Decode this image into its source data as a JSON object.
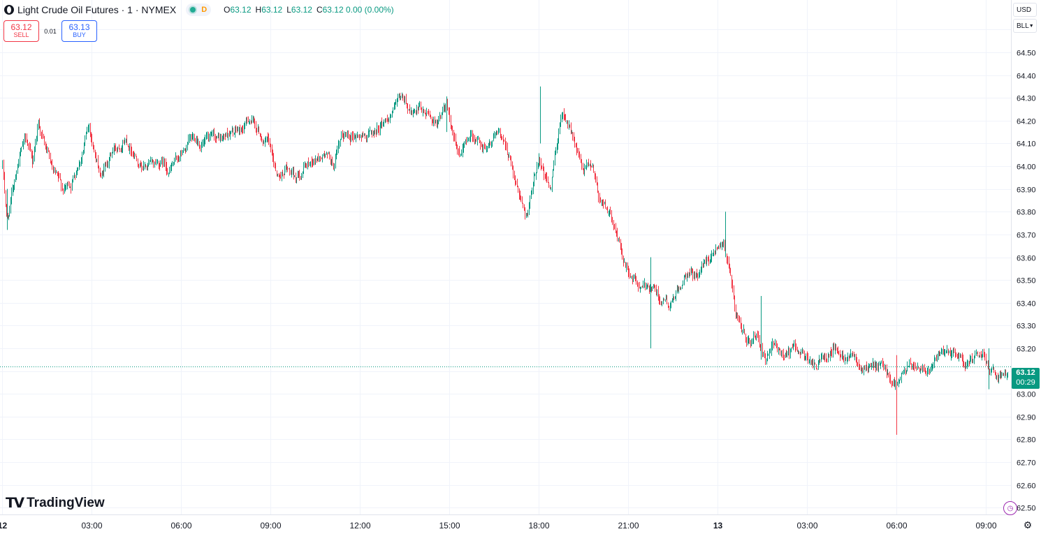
{
  "header": {
    "title": "Light Crude Oil Futures · 1 · NYMEX",
    "delay_badge": "D",
    "ohlc": [
      {
        "k": "O",
        "v": "63.12"
      },
      {
        "k": "H",
        "v": "63.12"
      },
      {
        "k": "L",
        "v": "63.12"
      },
      {
        "k": "C",
        "v": "63.12 0.00 (0.00%)"
      }
    ]
  },
  "trade": {
    "sell_price": "63.12",
    "sell_label": "SELL",
    "spread": "0.01",
    "buy_price": "63.13",
    "buy_label": "BUY"
  },
  "scale": {
    "currency": "USD",
    "unit": "BLL"
  },
  "last_price": {
    "price": "63.12",
    "countdown": "00:29"
  },
  "branding": {
    "logo_mark": "17",
    "logo_text": "TradingView"
  },
  "colors": {
    "up": "#089981",
    "down": "#f23645",
    "grid": "#f0f3fa",
    "text": "#131722",
    "last_price_line": "#089981"
  },
  "icons": {
    "market": "market-status-icon",
    "alert": "alert-icon",
    "settings": "gear-icon"
  },
  "chart_data": {
    "type": "candlestick",
    "interval": "1 minute",
    "yticks": [
      "64.60",
      "64.50",
      "64.40",
      "64.30",
      "64.20",
      "64.10",
      "64.00",
      "63.90",
      "63.80",
      "63.70",
      "63.60",
      "63.50",
      "63.40",
      "63.30",
      "63.20",
      "63.10",
      "63.00",
      "62.90",
      "62.80",
      "62.70",
      "62.60",
      "62.50"
    ],
    "ylim": [
      62.47,
      64.73
    ],
    "xticks": [
      {
        "label": "12",
        "t": 0
      },
      {
        "label": "03:00",
        "t": 3
      },
      {
        "label": "06:00",
        "t": 6
      },
      {
        "label": "09:00",
        "t": 9
      },
      {
        "label": "12:00",
        "t": 12
      },
      {
        "label": "15:00",
        "t": 15
      },
      {
        "label": "18:00",
        "t": 18
      },
      {
        "label": "21:00",
        "t": 21
      },
      {
        "label": "13",
        "t": 24
      },
      {
        "label": "03:00",
        "t": 27
      },
      {
        "label": "06:00",
        "t": 30
      },
      {
        "label": "09:00",
        "t": 33
      }
    ],
    "xlim_hours": [
      -0.08,
      33.85
    ],
    "last_price": 63.12,
    "path": [
      [
        0.0,
        64.0
      ],
      [
        0.15,
        63.75
      ],
      [
        0.35,
        63.9
      ],
      [
        0.55,
        64.05
      ],
      [
        0.8,
        64.12
      ],
      [
        1.0,
        64.0
      ],
      [
        1.2,
        64.2
      ],
      [
        1.4,
        64.1
      ],
      [
        1.7,
        63.95
      ],
      [
        2.0,
        63.88
      ],
      [
        2.3,
        63.92
      ],
      [
        2.6,
        64.05
      ],
      [
        2.9,
        64.18
      ],
      [
        3.1,
        64.05
      ],
      [
        3.3,
        63.95
      ],
      [
        3.6,
        64.05
      ],
      [
        3.9,
        64.1
      ],
      [
        4.1,
        64.14
      ],
      [
        4.4,
        64.08
      ],
      [
        4.7,
        64.03
      ],
      [
        5.0,
        64.0
      ],
      [
        5.3,
        64.02
      ],
      [
        5.6,
        63.99
      ],
      [
        5.9,
        64.03
      ],
      [
        6.2,
        64.08
      ],
      [
        6.5,
        64.12
      ],
      [
        6.9,
        64.1
      ],
      [
        7.3,
        64.1
      ],
      [
        7.6,
        64.14
      ],
      [
        8.0,
        64.15
      ],
      [
        8.3,
        64.21
      ],
      [
        8.6,
        64.15
      ],
      [
        8.9,
        64.1
      ],
      [
        9.1,
        64.0
      ],
      [
        9.3,
        63.95
      ],
      [
        9.5,
        64.0
      ],
      [
        9.8,
        63.93
      ],
      [
        10.1,
        64.0
      ],
      [
        10.4,
        64.03
      ],
      [
        10.8,
        64.05
      ],
      [
        11.1,
        64.0
      ],
      [
        11.4,
        64.1
      ],
      [
        11.7,
        64.15
      ],
      [
        12.1,
        64.14
      ],
      [
        12.5,
        64.15
      ],
      [
        12.8,
        64.2
      ],
      [
        13.1,
        64.25
      ],
      [
        13.4,
        64.28
      ],
      [
        13.8,
        64.23
      ],
      [
        14.2,
        64.22
      ],
      [
        14.5,
        64.2
      ],
      [
        14.9,
        64.27
      ],
      [
        15.1,
        64.1
      ],
      [
        15.4,
        64.05
      ],
      [
        15.7,
        64.15
      ],
      [
        16.1,
        64.1
      ],
      [
        16.5,
        64.14
      ],
      [
        16.9,
        64.1
      ],
      [
        17.2,
        63.95
      ],
      [
        17.4,
        63.85
      ],
      [
        17.6,
        63.8
      ],
      [
        17.8,
        63.9
      ],
      [
        18.0,
        64.05
      ],
      [
        18.2,
        63.95
      ],
      [
        18.4,
        63.9
      ],
      [
        18.6,
        64.1
      ],
      [
        18.8,
        64.25
      ],
      [
        19.0,
        64.2
      ],
      [
        19.2,
        64.1
      ],
      [
        19.5,
        63.95
      ],
      [
        19.8,
        64.0
      ],
      [
        20.0,
        63.88
      ],
      [
        20.3,
        63.82
      ],
      [
        20.6,
        63.7
      ],
      [
        20.9,
        63.55
      ],
      [
        21.2,
        63.5
      ],
      [
        21.5,
        63.45
      ],
      [
        21.8,
        63.48
      ],
      [
        22.1,
        63.43
      ],
      [
        22.4,
        63.38
      ],
      [
        22.7,
        63.45
      ],
      [
        23.0,
        63.5
      ],
      [
        23.3,
        63.52
      ],
      [
        23.6,
        63.58
      ],
      [
        23.9,
        63.65
      ],
      [
        24.2,
        63.7
      ],
      [
        24.4,
        63.55
      ],
      [
        24.6,
        63.35
      ],
      [
        24.8,
        63.25
      ],
      [
        25.0,
        63.22
      ],
      [
        25.3,
        63.25
      ],
      [
        25.6,
        63.13
      ],
      [
        25.9,
        63.2
      ],
      [
        26.1,
        63.17
      ],
      [
        26.4,
        63.18
      ],
      [
        26.7,
        63.2
      ],
      [
        27.0,
        63.15
      ],
      [
        27.3,
        63.1
      ],
      [
        27.6,
        63.18
      ],
      [
        27.9,
        63.22
      ],
      [
        28.2,
        63.18
      ],
      [
        28.5,
        63.2
      ],
      [
        28.8,
        63.15
      ],
      [
        29.1,
        63.12
      ],
      [
        29.4,
        63.1
      ],
      [
        29.7,
        63.09
      ],
      [
        30.0,
        63.05
      ],
      [
        30.2,
        63.08
      ],
      [
        30.5,
        63.11
      ],
      [
        30.8,
        63.13
      ],
      [
        31.1,
        63.14
      ],
      [
        31.4,
        63.17
      ],
      [
        31.7,
        63.16
      ],
      [
        32.0,
        63.15
      ],
      [
        32.3,
        63.13
      ],
      [
        32.6,
        63.14
      ],
      [
        32.9,
        63.15
      ],
      [
        33.2,
        63.12
      ],
      [
        33.5,
        63.1
      ],
      [
        33.75,
        63.12
      ]
    ],
    "spikes": [
      {
        "t": 18.05,
        "high": 64.35,
        "low": 64.1
      },
      {
        "t": 21.75,
        "high": 63.6,
        "low": 63.2
      },
      {
        "t": 25.45,
        "high": 63.43,
        "low": 63.15
      },
      {
        "t": 24.25,
        "high": 63.8,
        "low": 63.6
      },
      {
        "t": 30.0,
        "high": 63.17,
        "low": 62.82
      },
      {
        "t": 33.1,
        "high": 63.2,
        "low": 63.02
      },
      {
        "t": 0.15,
        "high": 63.9,
        "low": 63.72
      },
      {
        "t": 14.9,
        "high": 64.3,
        "low": 64.15
      }
    ]
  }
}
